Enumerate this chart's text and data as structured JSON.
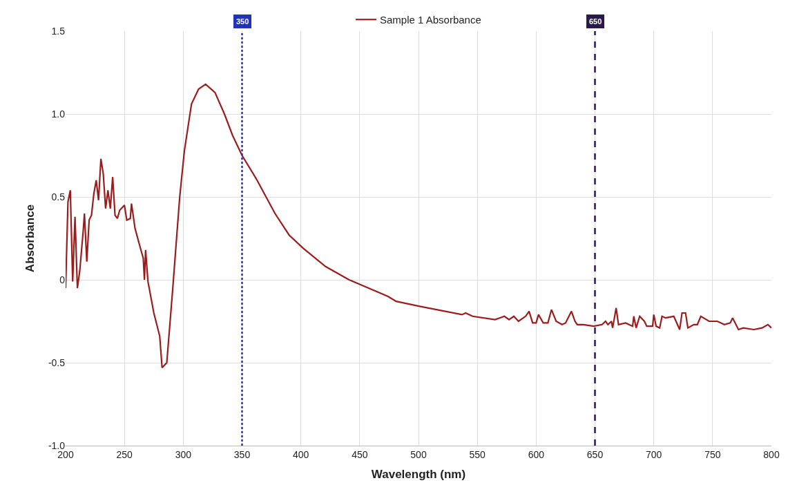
{
  "chart_data": {
    "type": "line",
    "xlabel": "Wavelength (nm)",
    "ylabel": "Absorbance",
    "xlim": [
      200,
      800
    ],
    "xticks": [
      200,
      250,
      300,
      350,
      400,
      450,
      500,
      550,
      600,
      650,
      700,
      750,
      800
    ],
    "ylim": [
      -1.0,
      1.5
    ],
    "yticks": [
      {
        "value": 1.5,
        "label": "1.5"
      },
      {
        "value": 1.0,
        "label": "1.0"
      },
      {
        "value": 0.5,
        "label": "0.5"
      },
      {
        "value": 0,
        "label": "0"
      },
      {
        "value": -0.5,
        "label": "-0.5"
      },
      {
        "value": -1.0,
        "label": "-1.0"
      }
    ],
    "grid": true,
    "legend": "top",
    "marker": "none",
    "line_style": "solid",
    "series": [
      {
        "name": "Sample 1 Absorbance",
        "color": "#9b1c1c",
        "x": [
          200,
          202,
          204,
          206,
          208,
          210,
          212,
          215,
          216,
          218,
          220,
          222,
          224,
          226,
          228,
          230,
          232,
          234,
          236,
          238,
          240,
          242,
          244,
          246,
          250,
          252,
          255,
          256,
          259,
          264,
          266,
          267,
          268,
          270,
          275,
          280,
          282,
          286,
          291,
          297,
          301,
          307,
          313,
          319,
          327,
          335,
          342,
          350,
          362,
          378,
          390,
          402,
          421,
          441,
          451,
          461,
          474,
          481,
          501,
          537,
          540,
          546,
          565,
          569,
          573,
          577,
          581,
          585,
          591,
          594,
          597,
          600,
          602,
          606,
          610,
          613,
          617,
          622,
          625,
          630,
          633,
          635,
          640,
          649,
          656,
          659,
          661,
          664,
          665,
          668,
          670,
          676,
          682,
          683,
          685,
          688,
          692,
          694,
          699,
          700,
          702,
          705,
          707,
          710,
          717,
          722,
          724,
          727,
          729,
          734,
          737,
          740,
          747,
          754,
          760,
          765,
          767,
          772,
          776,
          785,
          792,
          797,
          800
        ],
        "values": [
          -0.05,
          0.47,
          0.54,
          -0.01,
          0.38,
          -0.05,
          0.05,
          0.3,
          0.4,
          0.11,
          0.36,
          0.39,
          0.52,
          0.6,
          0.48,
          0.73,
          0.64,
          0.43,
          0.54,
          0.43,
          0.62,
          0.39,
          0.37,
          0.42,
          0.45,
          0.36,
          0.37,
          0.46,
          0.31,
          0.18,
          0.13,
          0.0,
          0.18,
          -0.01,
          -0.2,
          -0.34,
          -0.53,
          -0.5,
          -0.06,
          0.5,
          0.78,
          1.06,
          1.15,
          1.18,
          1.13,
          1.0,
          0.87,
          0.75,
          0.61,
          0.4,
          0.27,
          0.19,
          0.08,
          0.0,
          -0.03,
          -0.06,
          -0.1,
          -0.13,
          -0.16,
          -0.21,
          -0.2,
          -0.22,
          -0.24,
          -0.23,
          -0.22,
          -0.24,
          -0.22,
          -0.25,
          -0.22,
          -0.19,
          -0.26,
          -0.26,
          -0.21,
          -0.26,
          -0.26,
          -0.18,
          -0.25,
          -0.27,
          -0.26,
          -0.19,
          -0.25,
          -0.27,
          -0.27,
          -0.28,
          -0.27,
          -0.25,
          -0.27,
          -0.25,
          -0.29,
          -0.17,
          -0.27,
          -0.26,
          -0.28,
          -0.22,
          -0.29,
          -0.22,
          -0.25,
          -0.28,
          -0.28,
          -0.21,
          -0.28,
          -0.29,
          -0.22,
          -0.23,
          -0.22,
          -0.3,
          -0.2,
          -0.2,
          -0.29,
          -0.27,
          -0.27,
          -0.22,
          -0.25,
          -0.25,
          -0.27,
          -0.26,
          -0.23,
          -0.3,
          -0.29,
          -0.3,
          -0.29,
          -0.27,
          -0.29
        ]
      }
    ],
    "ref_lines": [
      {
        "axis": "x",
        "value": 350,
        "label": "350",
        "color": "#2233bb",
        "line_style": "dotted"
      },
      {
        "axis": "x",
        "value": 650,
        "label": "650",
        "color": "#2a1a4a",
        "line_style": "dashed"
      }
    ]
  }
}
